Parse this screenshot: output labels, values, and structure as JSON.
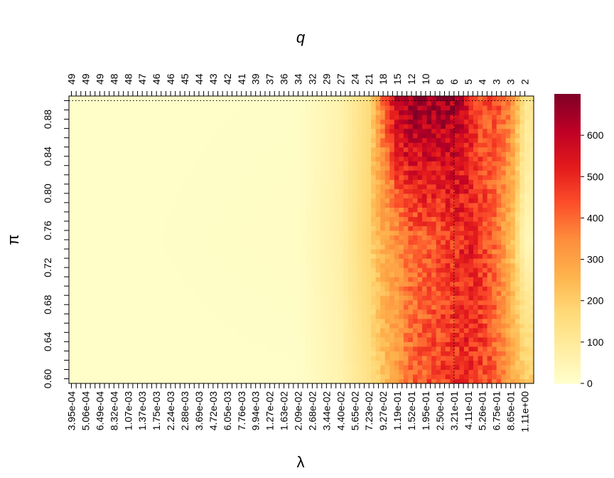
{
  "chart_data": {
    "type": "heatmap",
    "title": "q",
    "xlabel": "λ",
    "ylabel": "π",
    "x_tick_labels": [
      "3.95e-04",
      "5.06e-04",
      "6.49e-04",
      "8.32e-04",
      "1.07e-03",
      "1.37e-03",
      "1.75e-03",
      "2.24e-03",
      "2.88e-03",
      "3.69e-03",
      "4.72e-03",
      "6.05e-03",
      "7.76e-03",
      "9.94e-03",
      "1.27e-02",
      "1.63e-02",
      "2.09e-02",
      "2.68e-02",
      "3.44e-02",
      "4.40e-02",
      "5.65e-02",
      "7.23e-02",
      "9.27e-02",
      "1.19e-01",
      "1.52e-01",
      "1.95e-01",
      "2.50e-01",
      "3.21e-01",
      "4.11e-01",
      "5.26e-01",
      "6.75e-01",
      "8.65e-01",
      "1.11e+00"
    ],
    "top_tick_labels": [
      "49",
      "49",
      "49",
      "48",
      "48",
      "47",
      "46",
      "46",
      "45",
      "44",
      "43",
      "42",
      "41",
      "39",
      "37",
      "36",
      "34",
      "32",
      "29",
      "27",
      "24",
      "21",
      "18",
      "15",
      "12",
      "10",
      "8",
      "6",
      "5",
      "4",
      "3",
      "3",
      "2"
    ],
    "y_tick_labels": [
      "0.60",
      "0.64",
      "0.68",
      "0.72",
      "0.76",
      "0.80",
      "0.84",
      "0.88"
    ],
    "y_ticks": [
      0.6,
      0.64,
      0.68,
      0.72,
      0.76,
      0.8,
      0.84,
      0.88
    ],
    "ylim": [
      0.595,
      0.905
    ],
    "grid": false,
    "legend": "right",
    "colorbar": {
      "min": 0,
      "max": 700,
      "tick_labels": [
        "0",
        "100",
        "200",
        "300",
        "400",
        "500",
        "600"
      ],
      "ticks": [
        0,
        100,
        200,
        300,
        400,
        500,
        600
      ],
      "colors": [
        "#FFFFCC",
        "#FFEDA0",
        "#FED976",
        "#FEB24C",
        "#FD8D3C",
        "#FC4E2A",
        "#E31A1C",
        "#BD0026",
        "#800026"
      ]
    },
    "reference_lines": [
      {
        "orientation": "horizontal",
        "y": 0.9,
        "style": "dotted"
      },
      {
        "orientation": "vertical",
        "x": "3.21e-01",
        "style": "dotted"
      }
    ],
    "value_profile": {
      "columns_lambda": [
        "3.95e-04",
        "2.09e-02",
        "4.40e-02",
        "7.23e-02",
        "9.27e-02",
        "1.19e-01",
        "1.52e-01",
        "2.50e-01",
        "3.21e-01",
        "4.11e-01",
        "5.26e-01",
        "6.75e-01",
        "8.65e-01",
        "1.11e+00"
      ],
      "value_at_pi_0.90": [
        5,
        10,
        60,
        160,
        400,
        600,
        680,
        650,
        640,
        520,
        430,
        440,
        360,
        120
      ],
      "value_at_pi_0.75": [
        5,
        15,
        70,
        180,
        280,
        330,
        400,
        430,
        480,
        520,
        470,
        380,
        250,
        40
      ],
      "value_at_pi_0.60": [
        5,
        8,
        60,
        140,
        220,
        300,
        400,
        460,
        480,
        490,
        450,
        420,
        300,
        200
      ]
    }
  }
}
